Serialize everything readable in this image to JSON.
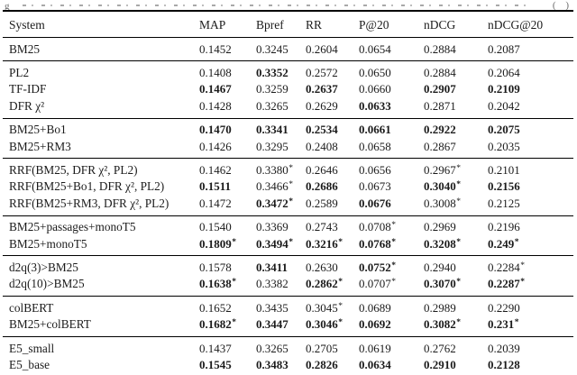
{
  "caption": {
    "left_fragment": "g",
    "right_fragment": "( )"
  },
  "colors": {
    "text": "#1b1b1b",
    "rule": "#000000",
    "background": "#ffffff",
    "caption_remnant": "#a8a8a8"
  },
  "table": {
    "columns": [
      "System",
      "MAP",
      "Bpref",
      "RR",
      "P@20",
      "nDCG",
      "nDCG@20"
    ],
    "groups": [
      {
        "rows": [
          {
            "system": "BM25",
            "cells": [
              {
                "v": "0.1452",
                "b": false
              },
              {
                "v": "0.3245",
                "b": false
              },
              {
                "v": "0.2604",
                "b": false
              },
              {
                "v": "0.0654",
                "b": false
              },
              {
                "v": "0.2884",
                "b": false
              },
              {
                "v": "0.2087",
                "b": false
              }
            ]
          }
        ]
      },
      {
        "rows": [
          {
            "system": "PL2",
            "cells": [
              {
                "v": "0.1408",
                "b": false
              },
              {
                "v": "0.3352",
                "b": true
              },
              {
                "v": "0.2572",
                "b": false
              },
              {
                "v": "0.0650",
                "b": false
              },
              {
                "v": "0.2884",
                "b": false
              },
              {
                "v": "0.2064",
                "b": false
              }
            ]
          },
          {
            "system": "TF-IDF",
            "cells": [
              {
                "v": "0.1467",
                "b": true
              },
              {
                "v": "0.3259",
                "b": false
              },
              {
                "v": "0.2637",
                "b": true
              },
              {
                "v": "0.0660",
                "b": false
              },
              {
                "v": "0.2907",
                "b": true
              },
              {
                "v": "0.2109",
                "b": true
              }
            ]
          },
          {
            "system": "DFR χ²",
            "cells": [
              {
                "v": "0.1428",
                "b": false
              },
              {
                "v": "0.3265",
                "b": false
              },
              {
                "v": "0.2629",
                "b": false
              },
              {
                "v": "0.0633",
                "b": true
              },
              {
                "v": "0.2871",
                "b": false
              },
              {
                "v": "0.2042",
                "b": false
              }
            ]
          }
        ]
      },
      {
        "rows": [
          {
            "system": "BM25+Bo1",
            "cells": [
              {
                "v": "0.1470",
                "b": true
              },
              {
                "v": "0.3341",
                "b": true
              },
              {
                "v": "0.2534",
                "b": true
              },
              {
                "v": "0.0661",
                "b": true
              },
              {
                "v": "0.2922",
                "b": true
              },
              {
                "v": "0.2075",
                "b": true
              }
            ]
          },
          {
            "system": "BM25+RM3",
            "cells": [
              {
                "v": "0.1426",
                "b": false
              },
              {
                "v": "0.3295",
                "b": false
              },
              {
                "v": "0.2408",
                "b": false
              },
              {
                "v": "0.0658",
                "b": false
              },
              {
                "v": "0.2867",
                "b": false
              },
              {
                "v": "0.2035",
                "b": false
              }
            ]
          }
        ]
      },
      {
        "rows": [
          {
            "system": "RRF(BM25, DFR χ², PL2)",
            "cells": [
              {
                "v": "0.1462",
                "b": false
              },
              {
                "v": "0.3380*",
                "b": false
              },
              {
                "v": "0.2646",
                "b": false
              },
              {
                "v": "0.0656",
                "b": false
              },
              {
                "v": "0.2967*",
                "b": false
              },
              {
                "v": "0.2101",
                "b": false
              }
            ]
          },
          {
            "system": "RRF(BM25+Bo1, DFR χ², PL2)",
            "cells": [
              {
                "v": "0.1511",
                "b": true
              },
              {
                "v": "0.3466*",
                "b": false
              },
              {
                "v": "0.2686",
                "b": true
              },
              {
                "v": "0.0673",
                "b": false
              },
              {
                "v": "0.3040*",
                "b": true
              },
              {
                "v": "0.2156",
                "b": true
              }
            ]
          },
          {
            "system": "RRF(BM25+RM3, DFR χ², PL2)",
            "cells": [
              {
                "v": "0.1472",
                "b": false
              },
              {
                "v": "0.3472*",
                "b": true
              },
              {
                "v": "0.2589",
                "b": false
              },
              {
                "v": "0.0676",
                "b": true
              },
              {
                "v": "0.3008*",
                "b": false
              },
              {
                "v": "0.2125",
                "b": false
              }
            ]
          }
        ]
      },
      {
        "rows": [
          {
            "system": "BM25+passages+monoT5",
            "cells": [
              {
                "v": "0.1540",
                "b": false
              },
              {
                "v": "0.3369",
                "b": false
              },
              {
                "v": "0.2743",
                "b": false
              },
              {
                "v": "0.0708*",
                "b": false
              },
              {
                "v": "0.2969",
                "b": false
              },
              {
                "v": "0.2196",
                "b": false
              }
            ]
          },
          {
            "system": "BM25+monoT5",
            "cells": [
              {
                "v": "0.1809*",
                "b": true
              },
              {
                "v": "0.3494*",
                "b": true
              },
              {
                "v": "0.3216*",
                "b": true
              },
              {
                "v": "0.0768*",
                "b": true
              },
              {
                "v": "0.3208*",
                "b": true
              },
              {
                "v": "0.249*",
                "b": true
              }
            ]
          }
        ]
      },
      {
        "rows": [
          {
            "system": "d2q(3)>BM25",
            "cells": [
              {
                "v": "0.1578",
                "b": false
              },
              {
                "v": "0.3411",
                "b": true
              },
              {
                "v": "0.2630",
                "b": false
              },
              {
                "v": "0.0752*",
                "b": true
              },
              {
                "v": "0.2940",
                "b": false
              },
              {
                "v": "0.2284*",
                "b": false
              }
            ]
          },
          {
            "system": "d2q(10)>BM25",
            "cells": [
              {
                "v": "0.1638*",
                "b": true
              },
              {
                "v": "0.3382",
                "b": false
              },
              {
                "v": "0.2862*",
                "b": true
              },
              {
                "v": "0.0707*",
                "b": false
              },
              {
                "v": "0.3070*",
                "b": true
              },
              {
                "v": "0.2287*",
                "b": true
              }
            ]
          }
        ]
      },
      {
        "rows": [
          {
            "system": "colBERT",
            "cells": [
              {
                "v": "0.1652",
                "b": false
              },
              {
                "v": "0.3435",
                "b": false
              },
              {
                "v": "0.3045*",
                "b": false
              },
              {
                "v": "0.0689",
                "b": false
              },
              {
                "v": "0.2989",
                "b": false
              },
              {
                "v": "0.2290",
                "b": false
              }
            ]
          },
          {
            "system": "BM25+colBERT",
            "cells": [
              {
                "v": "0.1682*",
                "b": true
              },
              {
                "v": "0.3447",
                "b": true
              },
              {
                "v": "0.3046*",
                "b": true
              },
              {
                "v": "0.0692",
                "b": true
              },
              {
                "v": "0.3082*",
                "b": true
              },
              {
                "v": "0.231*",
                "b": true
              }
            ]
          }
        ]
      },
      {
        "rows": [
          {
            "system": "E5_small",
            "cells": [
              {
                "v": "0.1437",
                "b": false
              },
              {
                "v": "0.3265",
                "b": false
              },
              {
                "v": "0.2705",
                "b": false
              },
              {
                "v": "0.0619",
                "b": false
              },
              {
                "v": "0.2762",
                "b": false
              },
              {
                "v": "0.2039",
                "b": false
              }
            ]
          },
          {
            "system": "E5_base",
            "cells": [
              {
                "v": "0.1545",
                "b": true
              },
              {
                "v": "0.3483",
                "b": true
              },
              {
                "v": "0.2826",
                "b": true
              },
              {
                "v": "0.0634",
                "b": true
              },
              {
                "v": "0.2910",
                "b": true
              },
              {
                "v": "0.2128",
                "b": true
              }
            ]
          }
        ]
      }
    ]
  }
}
